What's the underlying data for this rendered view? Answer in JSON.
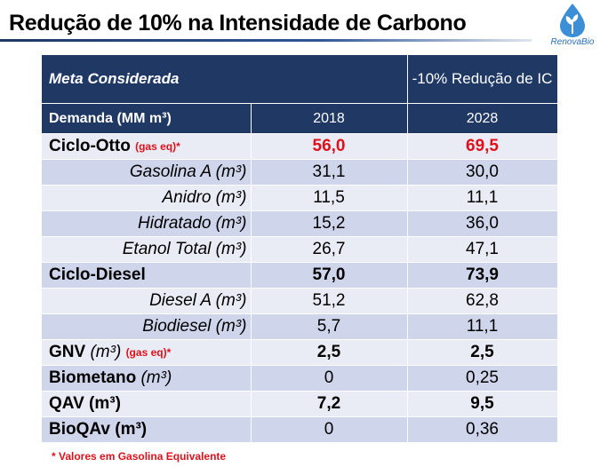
{
  "title": "Redução de 10% na Intensidade de Carbono",
  "logo": {
    "text": "RenovaBio",
    "color": "#2a6eb3"
  },
  "table": {
    "header_meta": "Meta Considerada",
    "header_scenario": "-10% Redução de IC",
    "header_demanda": "Demanda (MM m³)",
    "years": [
      "2018",
      "2028"
    ],
    "rows": [
      {
        "label": "Ciclo-Otto",
        "note": "(gas eq)*",
        "v2018": "56,0",
        "v2028": "69,5"
      },
      {
        "label": "Gasolina A (m³)",
        "v2018": "31,1",
        "v2028": "30,0"
      },
      {
        "label": "Anidro (m³)",
        "v2018": "11,5",
        "v2028": "11,1"
      },
      {
        "label": "Hidratado (m³)",
        "v2018": "15,2",
        "v2028": "36,0"
      },
      {
        "label": "Etanol Total (m³)",
        "v2018": "26,7",
        "v2028": "47,1"
      },
      {
        "label": "Ciclo-Diesel",
        "v2018": "57,0",
        "v2028": "73,9"
      },
      {
        "label": "Diesel A (m³)",
        "v2018": "51,2",
        "v2028": "62,8"
      },
      {
        "label": "Biodiesel (m³)",
        "v2018": "5,7",
        "v2028": "11,1"
      },
      {
        "label": "GNV",
        "unit": "(m³)",
        "note": "(gas eq)*",
        "v2018": "2,5",
        "v2028": "2,5"
      },
      {
        "label": "Biometano",
        "unit": "(m³)",
        "v2018": "0",
        "v2028": "0,25"
      },
      {
        "label": "QAV (m³)",
        "v2018": "7,2",
        "v2028": "9,5"
      },
      {
        "label": "BioQAv (m³)",
        "v2018": "0",
        "v2028": "0,36"
      }
    ]
  },
  "footnote": "* Valores em Gasolina Equivalente",
  "colors": {
    "header": "#1f3864",
    "row_dark": "#cfd5ea",
    "row_light": "#e9ebf5",
    "highlight": "#e0101a"
  }
}
